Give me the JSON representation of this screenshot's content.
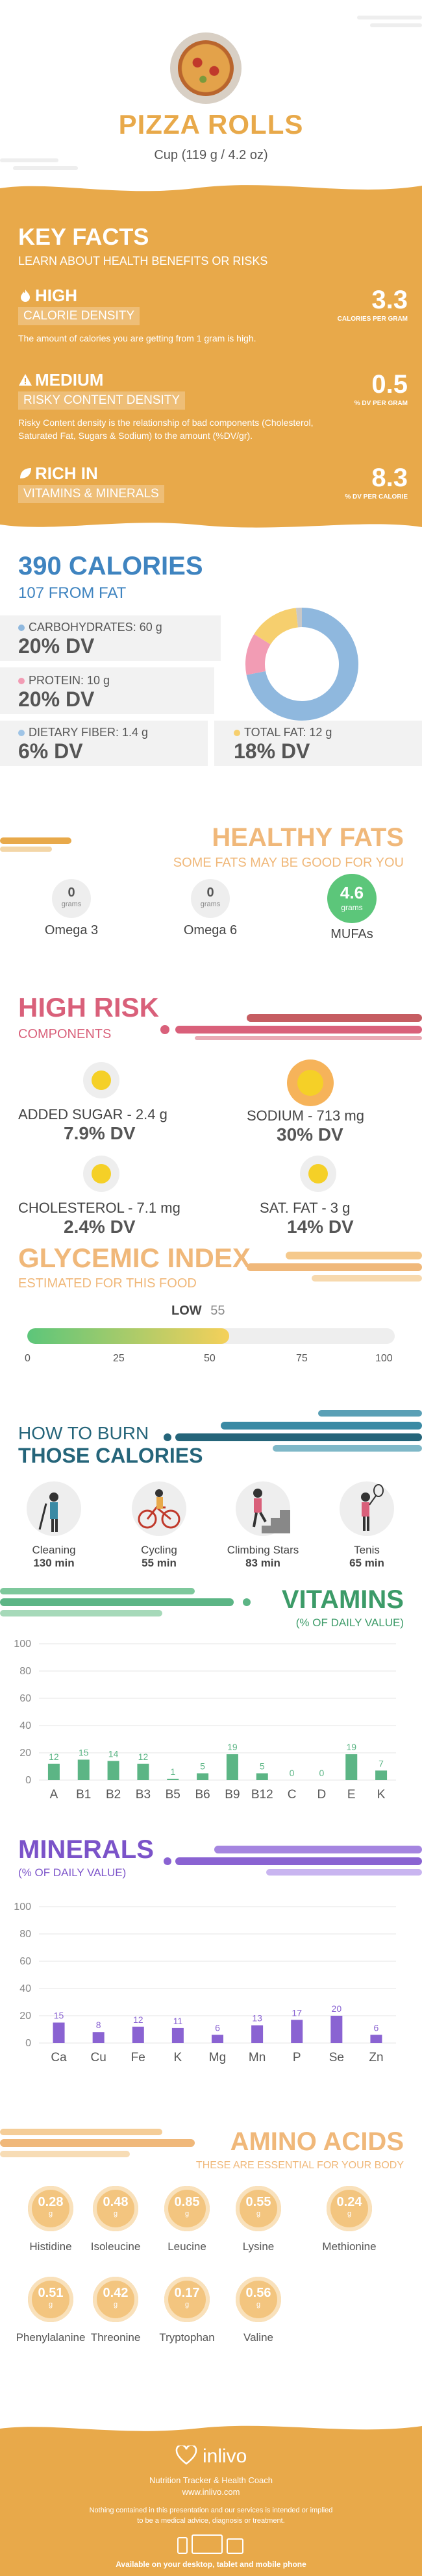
{
  "header": {
    "title": "PIZZA ROLLS",
    "serving": "Cup (119 g / 4.2 oz)"
  },
  "key_facts": {
    "title": "KEY FACTS",
    "subtitle": "LEARN ABOUT HEALTH BENEFITS OR RISKS",
    "items": [
      {
        "level": "HIGH",
        "label": "CALORIE DENSITY",
        "value": "3.3",
        "unit": "CALORIES PER GRAM",
        "desc": "The amount of calories you are getting from 1 gram is high."
      },
      {
        "level": "MEDIUM",
        "label": "RISKY CONTENT DENSITY",
        "value": "0.5",
        "unit": "% DV PER GRAM",
        "desc": "Risky Content density is the relationship of bad components (Cholesterol, Saturated Fat, Sugars & Sodium) to the amount (%DV/gr)."
      },
      {
        "level": "RICH  IN",
        "label": "VITAMINS & MINERALS",
        "value": "8.3",
        "unit": "% DV PER CALORIE",
        "desc": ""
      }
    ]
  },
  "calories": {
    "title": "390 CALORIES",
    "subtitle": "107 FROM FAT",
    "macros": [
      {
        "label": "CARBOHYDRATES: 60 g",
        "dv": "20% DV",
        "color": "#8fb8de"
      },
      {
        "label": "PROTEIN: 10 g",
        "dv": "20% DV",
        "color": "#f29cb4"
      },
      {
        "label": "DIETARY FIBER: 1.4 g",
        "dv": "6% DV",
        "color": "#9fc4e6"
      },
      {
        "label": "TOTAL FAT: 12 g",
        "dv": "18% DV",
        "color": "#f6cf6e"
      }
    ],
    "chart_data": {
      "type": "pie",
      "values": [
        60,
        10,
        12,
        1.4
      ],
      "colors": [
        "#8fb8de",
        "#f29cb4",
        "#f6cf6e",
        "#c8c8c8"
      ]
    }
  },
  "fats": {
    "title": "HEALTHY FATS",
    "subtitle": "SOME FATS MAY BE GOOD FOR YOU",
    "items": [
      {
        "value": "0",
        "unit": "grams",
        "name": "Omega 3"
      },
      {
        "value": "0",
        "unit": "grams",
        "name": "Omega 6"
      },
      {
        "value": "4.6",
        "unit": "grams",
        "name": "MUFAs"
      }
    ]
  },
  "risk": {
    "title": "HIGH RISK",
    "subtitle": "COMPONENTS",
    "items": [
      {
        "label": "ADDED SUGAR - 2.4 g",
        "dv": "7.9% DV"
      },
      {
        "label": "SODIUM - 713 mg",
        "dv": "30% DV"
      },
      {
        "label": "CHOLESTEROL - 7.1 mg",
        "dv": "2.4% DV"
      },
      {
        "label": "SAT. FAT - 3 g",
        "dv": "14% DV"
      }
    ]
  },
  "glycemic": {
    "title": "GLYCEMIC INDEX",
    "subtitle": "ESTIMATED FOR THIS FOOD",
    "level": "LOW",
    "value": "55",
    "value_num": 55,
    "ticks": [
      "0",
      "25",
      "50",
      "75",
      "100"
    ]
  },
  "burn": {
    "title1": "HOW TO BURN",
    "title2": "THOSE CALORIES",
    "items": [
      {
        "name": "Cleaning",
        "time": "130 min",
        "icon": "cleaning-icon"
      },
      {
        "name": "Cycling",
        "time": "55 min",
        "icon": "cycling-icon"
      },
      {
        "name": "Climbing Stars",
        "time": "83 min",
        "icon": "stairs-icon"
      },
      {
        "name": "Tenis",
        "time": "65 min",
        "icon": "tennis-icon"
      }
    ]
  },
  "vitamins": {
    "title": "VITAMINS",
    "subtitle": "(% OF DAILY VALUE)",
    "chart_data": {
      "type": "bar",
      "categories": [
        "A",
        "B1",
        "B2",
        "B3",
        "B5",
        "B6",
        "B9",
        "B12",
        "C",
        "D",
        "E",
        "K"
      ],
      "values": [
        12,
        15,
        14,
        12,
        1,
        5,
        19,
        5,
        0,
        0,
        19,
        7
      ],
      "yticks": [
        "0",
        "20",
        "40",
        "60",
        "80",
        "100"
      ],
      "ylim": [
        0,
        100
      ],
      "color": "#5cb585"
    }
  },
  "minerals": {
    "title": "MINERALS",
    "subtitle": "(% OF DAILY VALUE)",
    "chart_data": {
      "type": "bar",
      "categories": [
        "Ca",
        "Cu",
        "Fe",
        "K",
        "Mg",
        "Mn",
        "P",
        "Se",
        "Zn"
      ],
      "values": [
        15,
        8,
        12,
        11,
        6,
        13,
        17,
        20,
        6
      ],
      "yticks": [
        "0",
        "20",
        "40",
        "60",
        "80",
        "100"
      ],
      "ylim": [
        0,
        100
      ],
      "color": "#8a63d2"
    }
  },
  "amino": {
    "title": "AMINO ACIDS",
    "subtitle": "THESE ARE ESSENTIAL FOR YOUR BODY",
    "items": [
      {
        "value": "0.28",
        "unit": "g",
        "name": "Histidine"
      },
      {
        "value": "0.48",
        "unit": "g",
        "name": "Isoleucine"
      },
      {
        "value": "0.85",
        "unit": "g",
        "name": "Leucine"
      },
      {
        "value": "0.55",
        "unit": "g",
        "name": "Lysine"
      },
      {
        "value": "0.24",
        "unit": "g",
        "name": "Methionine"
      },
      {
        "value": "0.51",
        "unit": "g",
        "name": "Phenylalanine"
      },
      {
        "value": "0.42",
        "unit": "g",
        "name": "Threonine"
      },
      {
        "value": "0.17",
        "unit": "g",
        "name": "Tryptophan"
      },
      {
        "value": "0.56",
        "unit": "g",
        "name": "Valine"
      }
    ]
  },
  "footer": {
    "brand": "inlivo",
    "tagline": "Nutrition Tracker & Health Coach",
    "url": "www.inlivo.com",
    "disclaimer1": "Nothing contained in this presentation and our services is intended or implied",
    "disclaimer2": "to be a medical advice, diagnosis or treatment.",
    "available": "Available on your desktop, tablet and mobile phone"
  }
}
